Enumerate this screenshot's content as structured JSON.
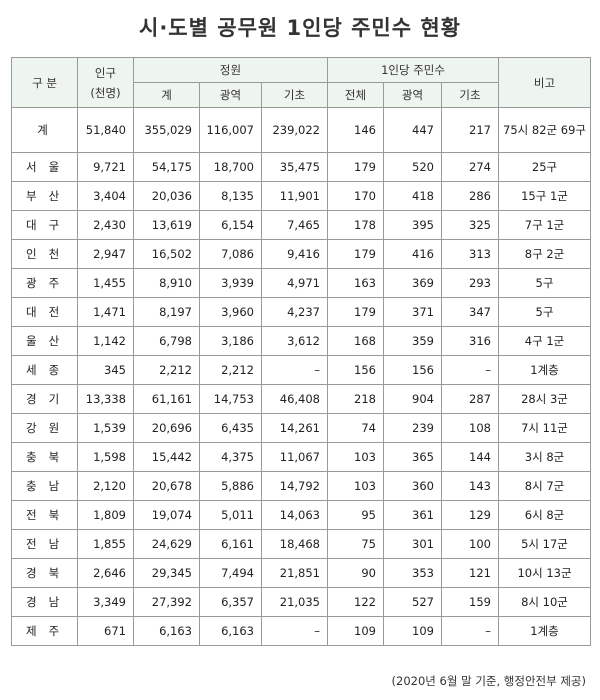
{
  "title": "시·도별 공무원 1인당 주민수 현황",
  "headers": {
    "gubun": "구  분",
    "population": "인구",
    "population_unit": "(천명)",
    "quota": "정원",
    "per_person": "1인당 주민수",
    "note": "비고",
    "quota_sub": [
      "계",
      "광역",
      "기초"
    ],
    "per_person_sub": [
      "전체",
      "광역",
      "기초"
    ]
  },
  "total": {
    "region": "계",
    "cells": [
      "51,840",
      "355,029",
      "116,007",
      "239,022",
      "146",
      "447",
      "217"
    ],
    "note": "75시 82군 69구"
  },
  "rows": [
    {
      "region": "서울",
      "cells": [
        "9,721",
        "54,175",
        "18,700",
        "35,475",
        "179",
        "520",
        "274"
      ],
      "note": "25구"
    },
    {
      "region": "부산",
      "cells": [
        "3,404",
        "20,036",
        "8,135",
        "11,901",
        "170",
        "418",
        "286"
      ],
      "note": "15구 1군"
    },
    {
      "region": "대구",
      "cells": [
        "2,430",
        "13,619",
        "6,154",
        "7,465",
        "178",
        "395",
        "325"
      ],
      "note": "7구 1군"
    },
    {
      "region": "인천",
      "cells": [
        "2,947",
        "16,502",
        "7,086",
        "9,416",
        "179",
        "416",
        "313"
      ],
      "note": "8구 2군"
    },
    {
      "region": "광주",
      "cells": [
        "1,455",
        "8,910",
        "3,939",
        "4,971",
        "163",
        "369",
        "293"
      ],
      "note": "5구"
    },
    {
      "region": "대전",
      "cells": [
        "1,471",
        "8,197",
        "3,960",
        "4,237",
        "179",
        "371",
        "347"
      ],
      "note": "5구"
    },
    {
      "region": "울산",
      "cells": [
        "1,142",
        "6,798",
        "3,186",
        "3,612",
        "168",
        "359",
        "316"
      ],
      "note": "4구 1군"
    },
    {
      "region": "세종",
      "cells": [
        "345",
        "2,212",
        "2,212",
        "–",
        "156",
        "156",
        "–"
      ],
      "note": "1계층"
    },
    {
      "region": "경기",
      "cells": [
        "13,338",
        "61,161",
        "14,753",
        "46,408",
        "218",
        "904",
        "287"
      ],
      "note": "28시 3군"
    },
    {
      "region": "강원",
      "cells": [
        "1,539",
        "20,696",
        "6,435",
        "14,261",
        "74",
        "239",
        "108"
      ],
      "note": "7시 11군"
    },
    {
      "region": "충북",
      "cells": [
        "1,598",
        "15,442",
        "4,375",
        "11,067",
        "103",
        "365",
        "144"
      ],
      "note": "3시 8군"
    },
    {
      "region": "충남",
      "cells": [
        "2,120",
        "20,678",
        "5,886",
        "14,792",
        "103",
        "360",
        "143"
      ],
      "note": "8시 7군"
    },
    {
      "region": "전북",
      "cells": [
        "1,809",
        "19,074",
        "5,011",
        "14,063",
        "95",
        "361",
        "129"
      ],
      "note": "6시 8군"
    },
    {
      "region": "전남",
      "cells": [
        "1,855",
        "24,629",
        "6,161",
        "18,468",
        "75",
        "301",
        "100"
      ],
      "note": "5시 17군"
    },
    {
      "region": "경북",
      "cells": [
        "2,646",
        "29,345",
        "7,494",
        "21,851",
        "90",
        "353",
        "121"
      ],
      "note": "10시 13군"
    },
    {
      "region": "경남",
      "cells": [
        "3,349",
        "27,392",
        "6,357",
        "21,035",
        "122",
        "527",
        "159"
      ],
      "note": "8시 10군"
    },
    {
      "region": "제주",
      "cells": [
        "671",
        "6,163",
        "6,163",
        "–",
        "109",
        "109",
        "–"
      ],
      "note": "1계층"
    }
  ],
  "footnote": "(2020년 6월 말 기준, 행정안전부 제공)",
  "colors": {
    "header_bg": "#eef4ee",
    "border": "#9a9a9a"
  }
}
